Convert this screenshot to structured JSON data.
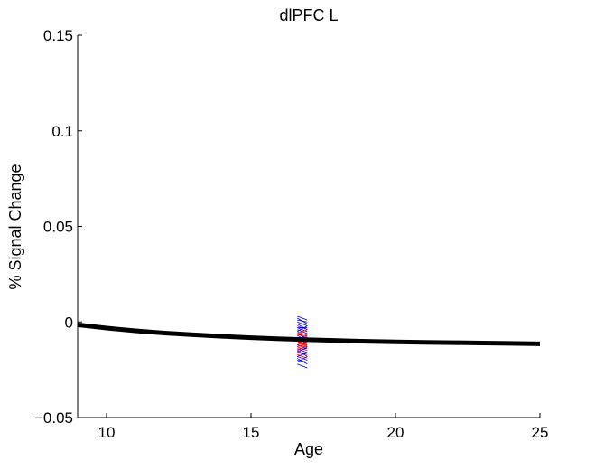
{
  "chart_data": {
    "type": "line",
    "title": "dlPFC L",
    "xlabel": "Age",
    "ylabel": "% Signal Change",
    "xlim": [
      9,
      25
    ],
    "ylim": [
      -0.05,
      0.15
    ],
    "xticks": [
      10,
      15,
      20,
      25
    ],
    "xtick_labels": [
      "10",
      "15",
      "20",
      "25"
    ],
    "yticks": [
      -0.05,
      0,
      0.05,
      0.1,
      0.15
    ],
    "ytick_labels": [
      "−0.05",
      "0",
      "0.05",
      "0.1",
      "0.15"
    ],
    "grid": false,
    "legend": "none",
    "series": [
      {
        "color": "#000000",
        "x": [
          9,
          10,
          11,
          12,
          13,
          14,
          15,
          16,
          17,
          18,
          19,
          20,
          21,
          22,
          23,
          24,
          25
        ],
        "y": [
          -0.0015,
          -0.0032,
          -0.0046,
          -0.0058,
          -0.0067,
          -0.0075,
          -0.0082,
          -0.0088,
          -0.0093,
          -0.0097,
          -0.0101,
          -0.0104,
          -0.0106,
          -0.0108,
          -0.011,
          -0.0112,
          -0.0114
        ]
      }
    ],
    "subject_segments": {
      "colors": [
        "#0000ff",
        "#ff0000"
      ],
      "x_range": [
        16.6,
        16.95
      ],
      "segments": [
        {
          "y": [
            0.002,
            -0.001
          ],
          "group": 0
        },
        {
          "y": [
            -0.006,
            -0.008
          ],
          "group": 1
        },
        {
          "y": [
            -0.003,
            -0.005
          ],
          "group": 0
        },
        {
          "y": [
            -0.01,
            -0.012
          ],
          "group": 1
        },
        {
          "y": [
            -0.014,
            -0.016
          ],
          "group": 0
        },
        {
          "y": [
            -0.008,
            -0.009
          ],
          "group": 1
        },
        {
          "y": [
            0.0,
            -0.002
          ],
          "group": 0
        },
        {
          "y": [
            -0.012,
            -0.013
          ],
          "group": 1
        },
        {
          "y": [
            -0.018,
            -0.02
          ],
          "group": 0
        },
        {
          "y": [
            -0.005,
            -0.007
          ],
          "group": 1
        },
        {
          "y": [
            -0.009,
            -0.011
          ],
          "group": 0
        },
        {
          "y": [
            -0.016,
            -0.017
          ],
          "group": 1
        },
        {
          "y": [
            -0.022,
            -0.024
          ],
          "group": 0
        },
        {
          "y": [
            -0.004,
            -0.006
          ],
          "group": 0
        },
        {
          "y": [
            -0.011,
            -0.012
          ],
          "group": 1
        },
        {
          "y": [
            -0.007,
            -0.01
          ],
          "group": 0
        },
        {
          "y": [
            -0.013,
            -0.015
          ],
          "group": 1
        },
        {
          "y": [
            -0.02,
            -0.021
          ],
          "group": 0
        },
        {
          "y": [
            -0.002,
            -0.004
          ],
          "group": 1
        },
        {
          "y": [
            -0.015,
            -0.018
          ],
          "group": 0
        },
        {
          "y": [
            -0.009,
            -0.01
          ],
          "group": 1
        },
        {
          "y": [
            0.001,
            0.0
          ],
          "group": 0
        },
        {
          "y": [
            -0.017,
            -0.019
          ],
          "group": 1
        },
        {
          "y": [
            -0.006,
            -0.009
          ],
          "group": 0
        },
        {
          "y": [
            -0.012,
            -0.014
          ],
          "group": 0
        },
        {
          "y": [
            -0.01,
            -0.013
          ],
          "group": 1
        },
        {
          "y": [
            -0.003,
            -0.003
          ],
          "group": 0
        },
        {
          "y": [
            -0.019,
            -0.022
          ],
          "group": 0
        },
        {
          "y": [
            -0.008,
            -0.011
          ],
          "group": 1
        },
        {
          "y": [
            -0.014,
            -0.014
          ],
          "group": 1
        },
        {
          "y": [
            -0.001,
            -0.004
          ],
          "group": 0
        },
        {
          "y": [
            -0.011,
            -0.009
          ],
          "group": 1
        },
        {
          "y": [
            -0.016,
            -0.013
          ],
          "group": 0
        },
        {
          "y": [
            -0.007,
            -0.006
          ],
          "group": 1
        },
        {
          "y": [
            -0.021,
            -0.018
          ],
          "group": 0
        },
        {
          "y": [
            -0.005,
            -0.002
          ],
          "group": 0
        },
        {
          "y": [
            -0.013,
            -0.011
          ],
          "group": 1
        },
        {
          "y": [
            -0.009,
            -0.007
          ],
          "group": 0
        },
        {
          "y": [
            0.003,
            0.001
          ],
          "group": 0
        },
        {
          "y": [
            -0.012,
            -0.01
          ],
          "group": 1
        },
        {
          "y": [
            -0.015,
            -0.012
          ],
          "group": 1
        },
        {
          "y": [
            -0.006,
            -0.004
          ],
          "group": 1
        },
        {
          "y": [
            -0.018,
            -0.016
          ],
          "group": 0
        },
        {
          "y": [
            -0.01,
            -0.008
          ],
          "group": 1
        }
      ]
    }
  }
}
